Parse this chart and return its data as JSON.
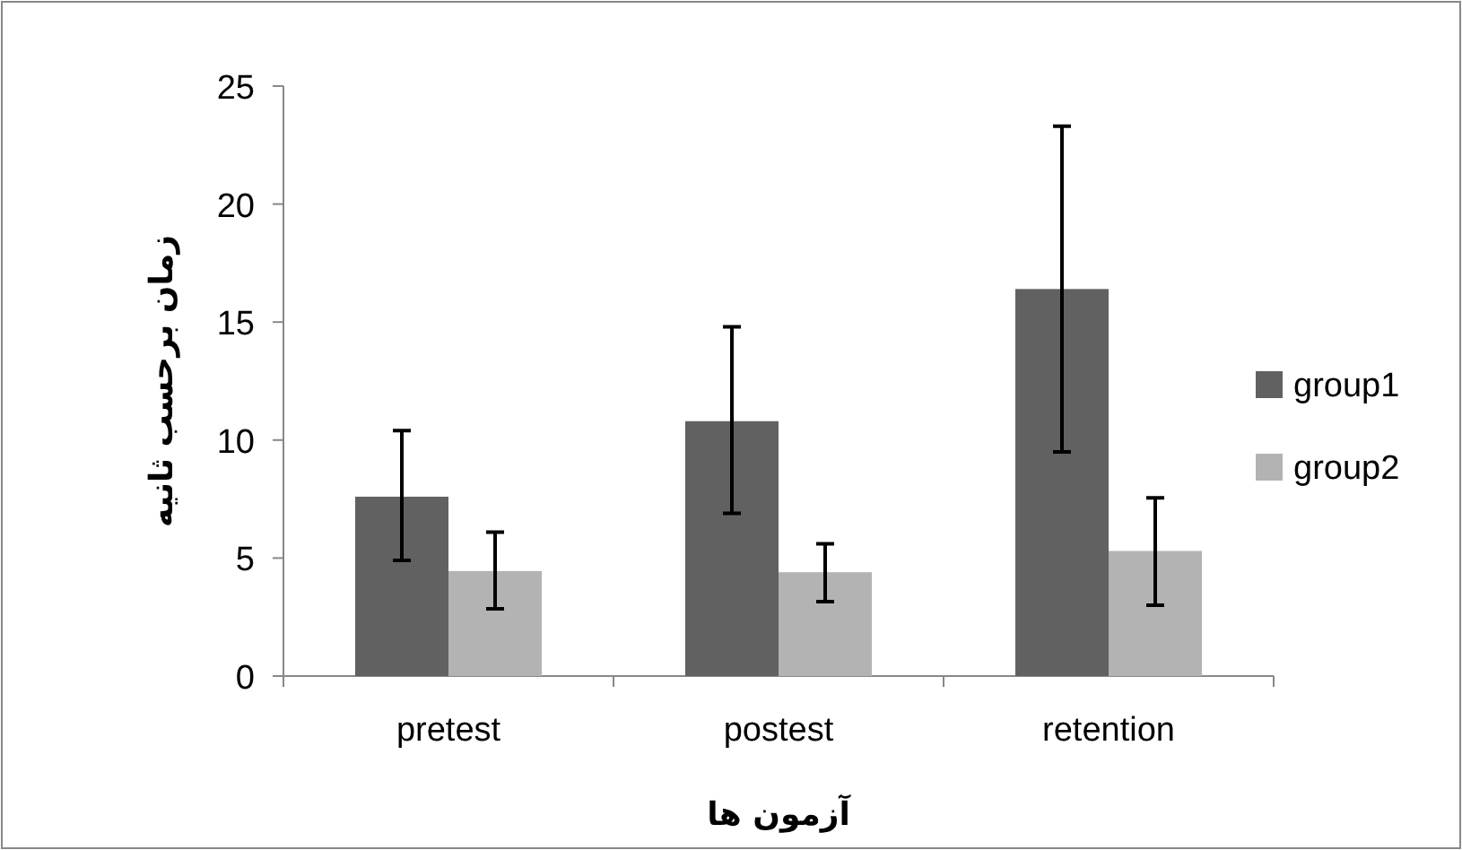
{
  "chart_data": {
    "type": "bar",
    "xlabel": "آزمون ها",
    "ylabel": "زمان برحسب ثانیه",
    "categories": [
      "pretest",
      "postest",
      "retention"
    ],
    "series": [
      {
        "name": "group1",
        "color": "#616161",
        "values": [
          7.6,
          10.8,
          16.4
        ],
        "errors": [
          [
            4.9,
            10.4
          ],
          [
            6.9,
            14.8
          ],
          [
            9.5,
            23.3
          ]
        ]
      },
      {
        "name": "group2",
        "color": "#b3b3b3",
        "values": [
          4.45,
          4.4,
          5.3
        ],
        "errors": [
          [
            2.85,
            6.1
          ],
          [
            3.15,
            5.6
          ],
          [
            3.0,
            7.55
          ]
        ]
      }
    ],
    "ylim": [
      0,
      25
    ],
    "yticks": [
      0,
      5,
      10,
      15,
      20,
      25
    ],
    "legend": "right"
  }
}
